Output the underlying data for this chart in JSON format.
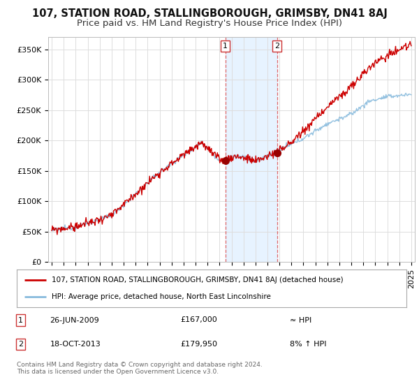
{
  "title": "107, STATION ROAD, STALLINGBOROUGH, GRIMSBY, DN41 8AJ",
  "subtitle": "Price paid vs. HM Land Registry's House Price Index (HPI)",
  "ylabel_ticks": [
    "£0",
    "£50K",
    "£100K",
    "£150K",
    "£200K",
    "£250K",
    "£300K",
    "£350K"
  ],
  "ytick_values": [
    0,
    50000,
    100000,
    150000,
    200000,
    250000,
    300000,
    350000
  ],
  "ylim": [
    0,
    370000
  ],
  "xlim_start": 1994.7,
  "xlim_end": 2025.3,
  "line_color_property": "#cc0000",
  "line_color_hpi": "#88bbdd",
  "marker1_date": 2009.48,
  "marker1_price": 167000,
  "marker2_date": 2013.79,
  "marker2_price": 179950,
  "legend_property": "107, STATION ROAD, STALLINGBOROUGH, GRIMSBY, DN41 8AJ (detached house)",
  "legend_hpi": "HPI: Average price, detached house, North East Lincolnshire",
  "shaded_region_start": 2009.48,
  "shaded_region_end": 2013.79,
  "background_color": "#ffffff",
  "grid_color": "#dddddd",
  "title_fontsize": 10.5,
  "subtitle_fontsize": 9.5,
  "tick_fontsize": 8,
  "footnote": "Contains HM Land Registry data © Crown copyright and database right 2024.\nThis data is licensed under the Open Government Licence v3.0."
}
